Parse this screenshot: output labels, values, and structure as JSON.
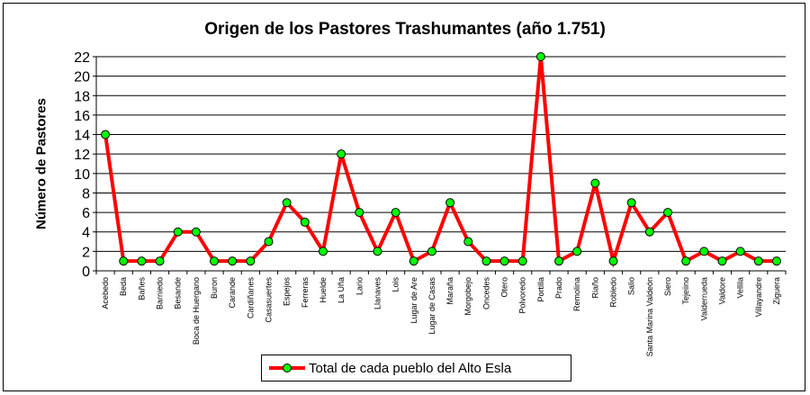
{
  "chart_data": {
    "type": "line",
    "title": "Origen de los Pastores Trashumantes (año 1.751)",
    "xlabel": "",
    "ylabel": "Número de Pastores",
    "ylim": [
      0,
      22
    ],
    "yticks": [
      0,
      2,
      4,
      6,
      8,
      10,
      12,
      14,
      16,
      18,
      20,
      22
    ],
    "grid": "horizontal",
    "legend_position": "bottom",
    "categories": [
      "Acebedo",
      "Beda",
      "Bañes",
      "Barniedo",
      "Besande",
      "Boca de Huergano",
      "Buron",
      "Carande",
      "Cardiñanes",
      "Casasuertes",
      "Espejos",
      "Ferreras",
      "Huelde",
      "La Uña",
      "Lario",
      "Llanaves",
      "Lois",
      "Lugar de Are",
      "Lugar de Casas",
      "Maraña",
      "Morgobejo",
      "Oncedes",
      "Otero",
      "Polvoredo",
      "Portilla",
      "Prado",
      "Remolina",
      "Riaño",
      "Robledo",
      "Salio",
      "Santa Marina Valdeón",
      "Siero",
      "Tejeiino",
      "Valderrueda",
      "Valdore",
      "Vellila",
      "Villayandre",
      "Ziguera"
    ],
    "series": [
      {
        "name": "Total de cada pueblo del Alto Esla",
        "color": "#ff0000",
        "marker_color": "#00ff00",
        "values": [
          14,
          1,
          1,
          1,
          4,
          4,
          1,
          1,
          1,
          3,
          7,
          5,
          2,
          12,
          6,
          2,
          6,
          1,
          2,
          7,
          3,
          1,
          1,
          1,
          22,
          1,
          2,
          9,
          1,
          7,
          4,
          6,
          1,
          2,
          1,
          2,
          1,
          1
        ]
      }
    ]
  }
}
